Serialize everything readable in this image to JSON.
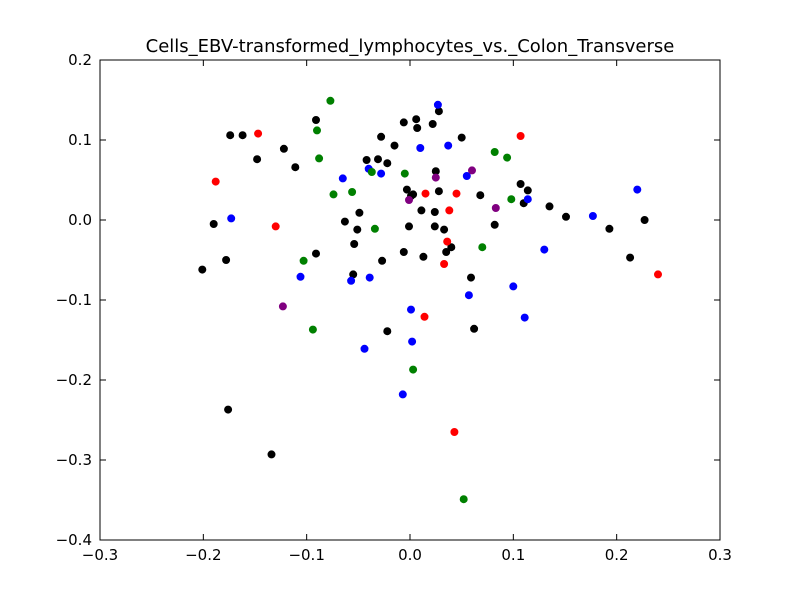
{
  "chart_data": {
    "type": "scatter",
    "title": "Cells_EBV-transformed_lymphocytes_vs._Colon_Transverse",
    "xlabel": "",
    "ylabel": "",
    "xlim": [
      -0.3,
      0.3
    ],
    "ylim": [
      -0.4,
      0.2
    ],
    "xticks": [
      -0.3,
      -0.2,
      -0.1,
      0.0,
      0.1,
      0.2,
      0.3
    ],
    "yticks": [
      -0.4,
      -0.3,
      -0.2,
      -0.1,
      0.0,
      0.1,
      0.2
    ],
    "xtick_labels": [
      "−0.3",
      "−0.2",
      "−0.1",
      "0.0",
      "0.1",
      "0.2",
      "0.3"
    ],
    "ytick_labels": [
      "−0.4",
      "−0.3",
      "−0.2",
      "−0.1",
      "0.0",
      "0.1",
      "0.2"
    ],
    "grid": false,
    "series": [
      {
        "color": "#000000",
        "points": [
          [
            -0.201,
            -0.062
          ],
          [
            -0.19,
            -0.005
          ],
          [
            -0.178,
            -0.05
          ],
          [
            -0.176,
            -0.237
          ],
          [
            -0.174,
            0.106
          ],
          [
            -0.162,
            0.106
          ],
          [
            -0.148,
            0.076
          ],
          [
            -0.134,
            -0.293
          ],
          [
            -0.122,
            0.089
          ],
          [
            -0.111,
            0.066
          ],
          [
            -0.091,
            0.125
          ],
          [
            -0.091,
            -0.042
          ],
          [
            -0.063,
            -0.002
          ],
          [
            -0.055,
            -0.068
          ],
          [
            -0.054,
            -0.03
          ],
          [
            -0.049,
            0.009
          ],
          [
            -0.051,
            -0.012
          ],
          [
            -0.042,
            0.075
          ],
          [
            -0.031,
            0.076
          ],
          [
            -0.028,
            0.104
          ],
          [
            -0.027,
            -0.051
          ],
          [
            -0.022,
            0.071
          ],
          [
            -0.022,
            -0.139
          ],
          [
            -0.015,
            0.093
          ],
          [
            -0.006,
            0.122
          ],
          [
            -0.006,
            -0.04
          ],
          [
            -0.003,
            0.038
          ],
          [
            0.001,
            0.03
          ],
          [
            0.003,
            0.032
          ],
          [
            0.006,
            0.126
          ],
          [
            0.007,
            0.115
          ],
          [
            -0.001,
            -0.008
          ],
          [
            0.011,
            0.012
          ],
          [
            0.013,
            -0.046
          ],
          [
            0.022,
            0.12
          ],
          [
            0.025,
            0.061
          ],
          [
            0.028,
            0.036
          ],
          [
            0.028,
            0.136
          ],
          [
            0.024,
            0.01
          ],
          [
            0.024,
            -0.008
          ],
          [
            0.033,
            -0.012
          ],
          [
            0.035,
            -0.04
          ],
          [
            0.04,
            -0.034
          ],
          [
            0.05,
            0.103
          ],
          [
            0.059,
            -0.072
          ],
          [
            0.062,
            -0.136
          ],
          [
            0.068,
            0.031
          ],
          [
            0.082,
            -0.006
          ],
          [
            0.107,
            0.045
          ],
          [
            0.11,
            0.021
          ],
          [
            0.114,
            0.037
          ],
          [
            0.135,
            0.017
          ],
          [
            0.151,
            0.004
          ],
          [
            0.193,
            -0.011
          ],
          [
            0.213,
            -0.047
          ],
          [
            0.227,
            0.0
          ]
        ]
      },
      {
        "color": "#0000ff",
        "points": [
          [
            -0.173,
            0.002
          ],
          [
            -0.106,
            -0.071
          ],
          [
            -0.065,
            0.052
          ],
          [
            -0.057,
            -0.076
          ],
          [
            -0.044,
            -0.161
          ],
          [
            -0.04,
            0.064
          ],
          [
            -0.039,
            -0.072
          ],
          [
            -0.028,
            0.058
          ],
          [
            -0.007,
            -0.218
          ],
          [
            0.001,
            -0.112
          ],
          [
            0.002,
            -0.152
          ],
          [
            0.01,
            0.09
          ],
          [
            0.027,
            0.144
          ],
          [
            0.037,
            0.093
          ],
          [
            0.055,
            0.055
          ],
          [
            0.057,
            -0.094
          ],
          [
            0.1,
            -0.083
          ],
          [
            0.111,
            -0.122
          ],
          [
            0.114,
            0.026
          ],
          [
            0.13,
            -0.037
          ],
          [
            0.177,
            0.005
          ],
          [
            0.22,
            0.038
          ]
        ]
      },
      {
        "color": "#ff0000",
        "points": [
          [
            -0.188,
            0.048
          ],
          [
            -0.147,
            0.108
          ],
          [
            -0.13,
            -0.008
          ],
          [
            0.014,
            -0.121
          ],
          [
            0.015,
            0.033
          ],
          [
            0.033,
            -0.055
          ],
          [
            0.036,
            -0.027
          ],
          [
            0.038,
            0.012
          ],
          [
            0.043,
            -0.265
          ],
          [
            0.045,
            0.033
          ],
          [
            0.107,
            0.105
          ],
          [
            0.24,
            -0.068
          ]
        ]
      },
      {
        "color": "#008000",
        "points": [
          [
            -0.077,
            0.149
          ],
          [
            -0.09,
            0.112
          ],
          [
            -0.088,
            0.077
          ],
          [
            -0.103,
            -0.051
          ],
          [
            -0.094,
            -0.137
          ],
          [
            -0.074,
            0.032
          ],
          [
            -0.056,
            0.035
          ],
          [
            -0.037,
            0.06
          ],
          [
            -0.034,
            -0.011
          ],
          [
            -0.005,
            0.058
          ],
          [
            0.003,
            -0.187
          ],
          [
            0.052,
            -0.349
          ],
          [
            0.07,
            -0.034
          ],
          [
            0.082,
            0.085
          ],
          [
            0.094,
            0.078
          ],
          [
            0.098,
            0.026
          ]
        ]
      },
      {
        "color": "#800080",
        "points": [
          [
            -0.123,
            -0.108
          ],
          [
            -0.001,
            0.025
          ],
          [
            0.025,
            0.053
          ],
          [
            0.06,
            0.062
          ],
          [
            0.083,
            0.015
          ]
        ]
      }
    ]
  }
}
